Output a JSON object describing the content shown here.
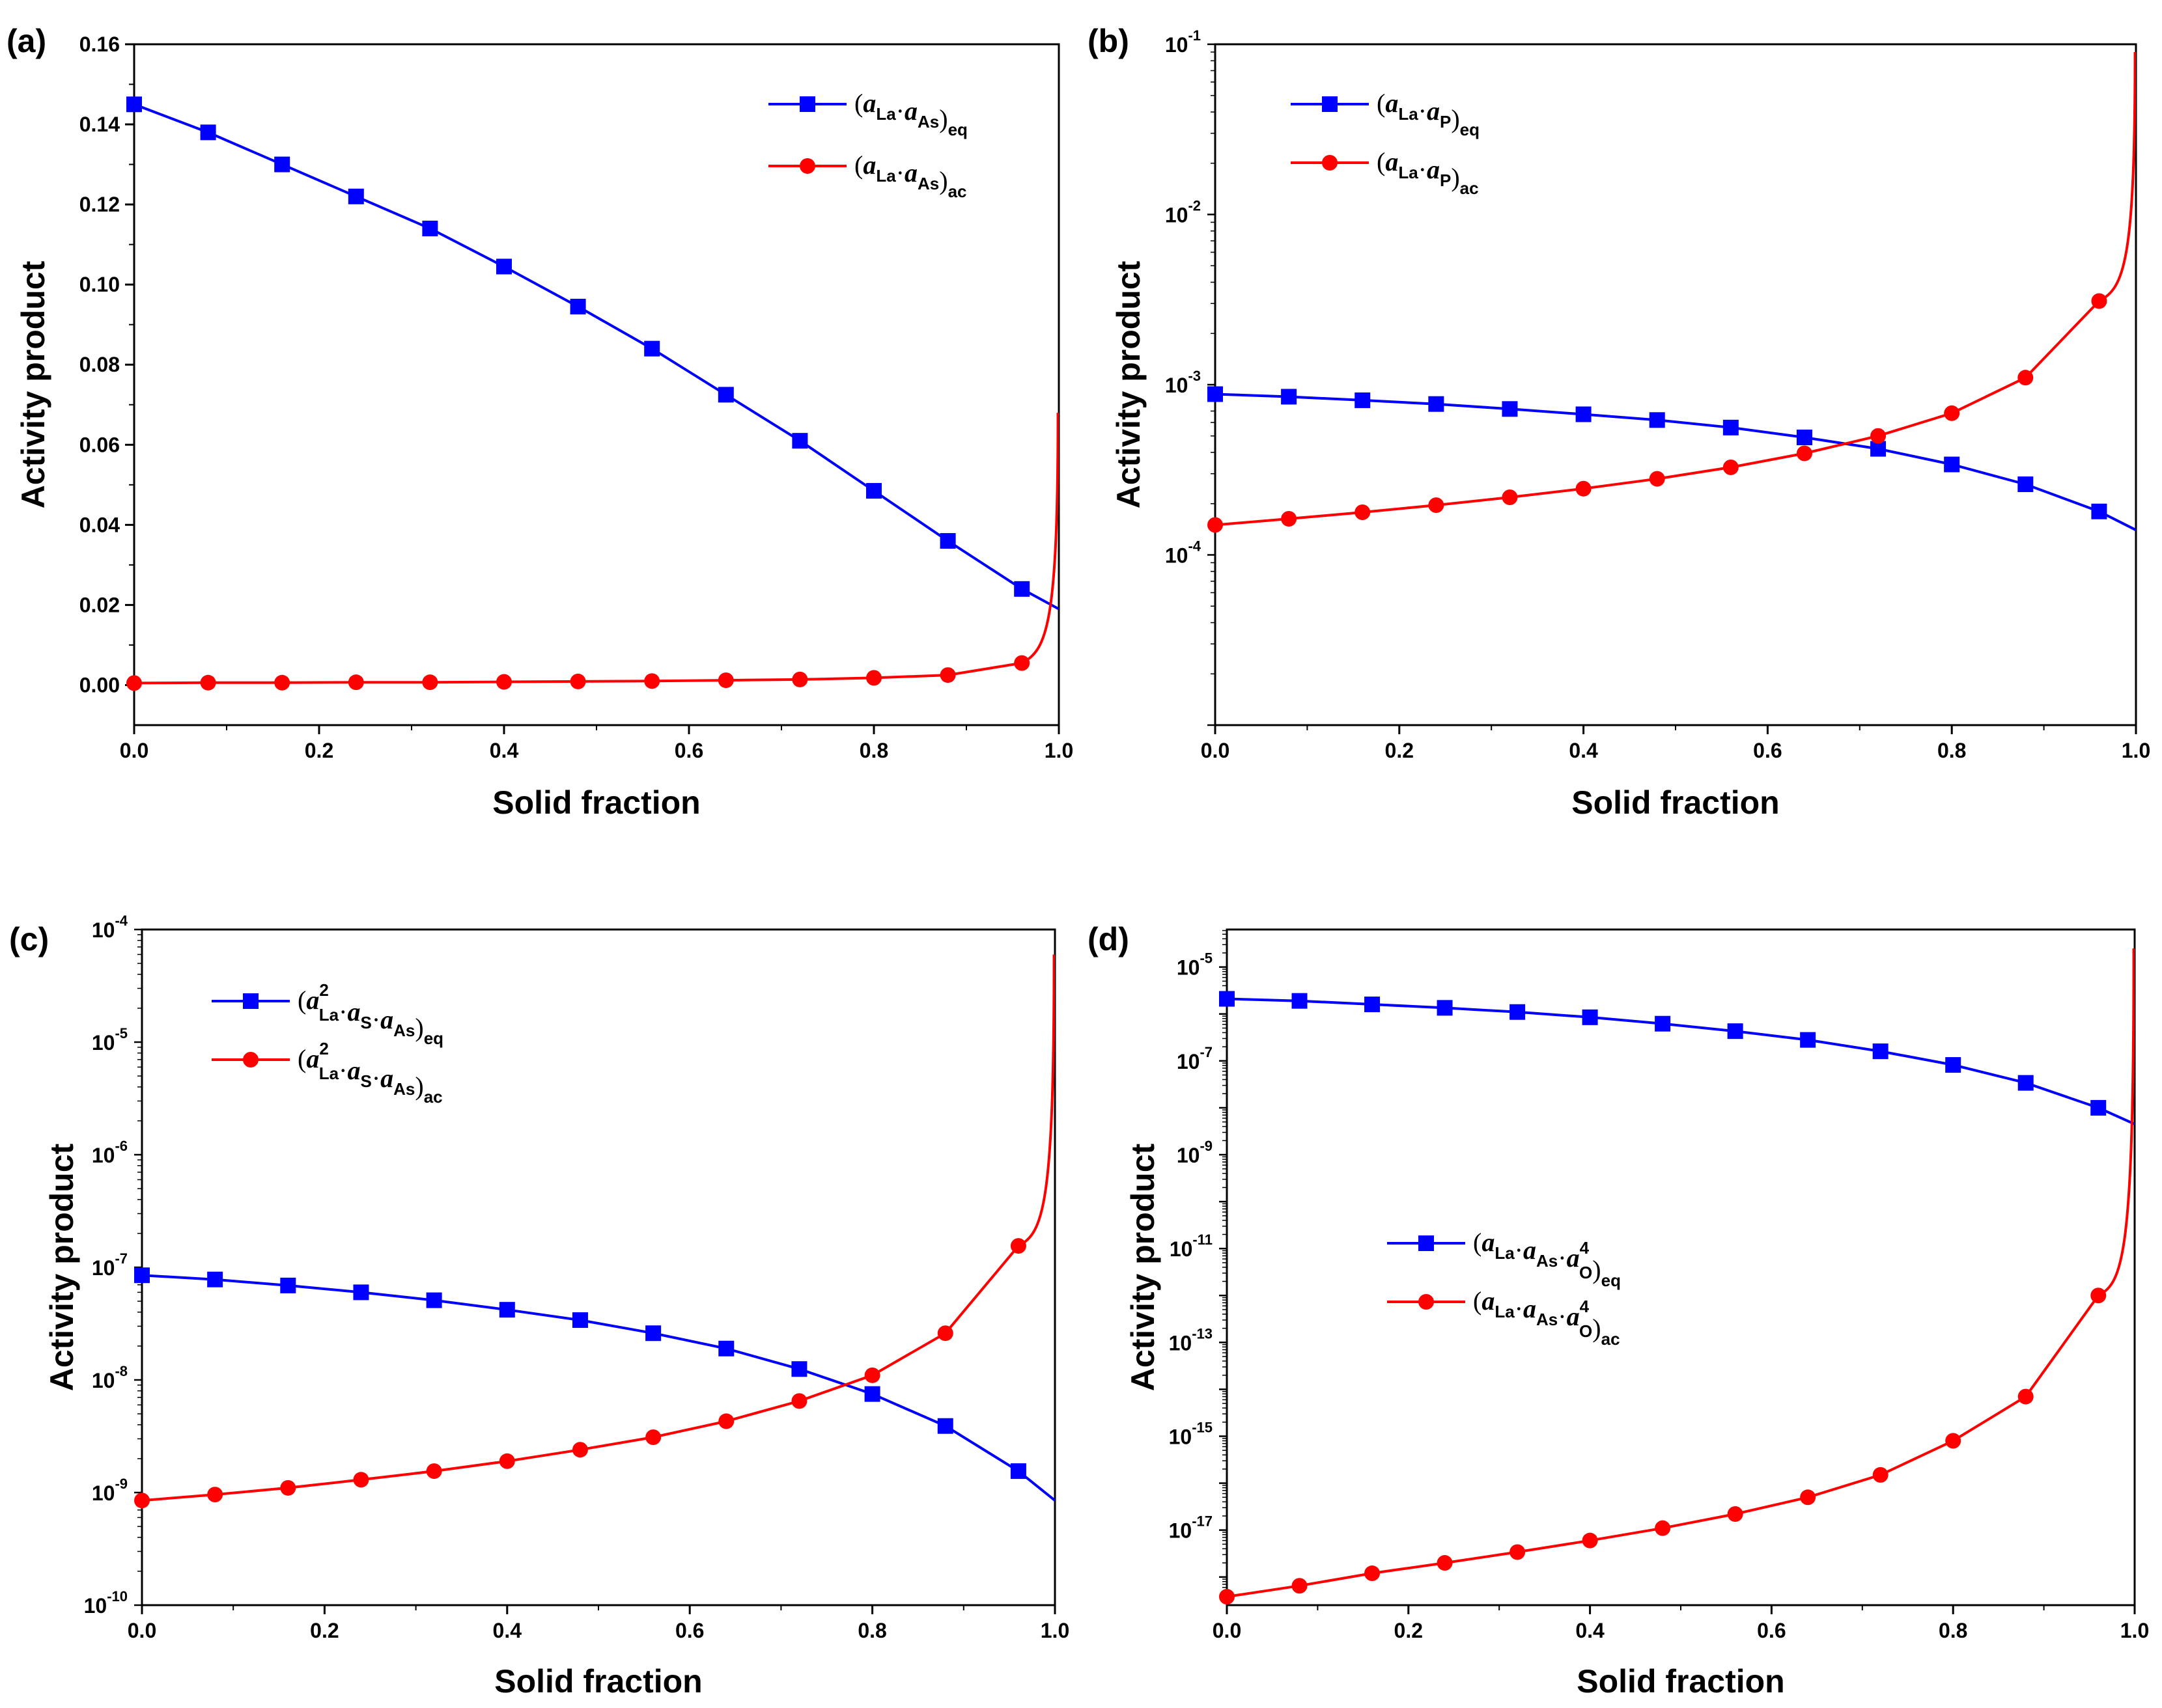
{
  "figure_labels": [
    "(a)",
    "(b)",
    "(c)",
    "(d)"
  ],
  "colors": {
    "eq": "#0000ff",
    "ac": "#ff0000",
    "axis": "#000000"
  },
  "chart_data": [
    {
      "panel": "(a)",
      "type": "line",
      "xlabel": "Solid fraction",
      "ylabel": "Activity product",
      "yscale": "linear",
      "xlim": [
        0,
        1
      ],
      "ylim": [
        -0.01,
        0.16
      ],
      "xticks": [
        "0.0",
        "0.2",
        "0.4",
        "0.6",
        "0.8",
        "1.0"
      ],
      "yticks": [
        "0.00",
        "0.02",
        "0.04",
        "0.06",
        "0.08",
        "0.10",
        "0.12",
        "0.14",
        "0.16"
      ],
      "legend": {
        "position": "top-right",
        "eq": {
          "pre": "(",
          "terms": [
            {
              "b": "a",
              "sub": "La"
            },
            {
              "b": "a",
              "sub": "As"
            }
          ],
          "post": ")",
          "sub": "eq"
        },
        "ac": {
          "pre": "(",
          "terms": [
            {
              "b": "a",
              "sub": "La"
            },
            {
              "b": "a",
              "sub": "As"
            }
          ],
          "post": ")",
          "sub": "ac"
        }
      },
      "series": [
        {
          "name": "eq",
          "marker": "square",
          "x": [
            0,
            0.08,
            0.16,
            0.24,
            0.32,
            0.4,
            0.48,
            0.56,
            0.64,
            0.72,
            0.8,
            0.88,
            0.96
          ],
          "values": [
            0.145,
            0.138,
            0.13,
            0.122,
            0.114,
            0.1045,
            0.0945,
            0.084,
            0.0725,
            0.061,
            0.0485,
            0.036,
            0.024
          ],
          "end": [
            1.0,
            0.019
          ]
        },
        {
          "name": "ac",
          "marker": "circle",
          "x": [
            0,
            0.08,
            0.16,
            0.24,
            0.32,
            0.4,
            0.48,
            0.56,
            0.64,
            0.72,
            0.8,
            0.88,
            0.96
          ],
          "values": [
            0.0005,
            0.0006,
            0.0006,
            0.0007,
            0.0007,
            0.0008,
            0.0009,
            0.001,
            0.0012,
            0.0014,
            0.0018,
            0.0025,
            0.0055
          ],
          "end": [
            0.999,
            0.068
          ]
        }
      ]
    },
    {
      "panel": "(b)",
      "type": "line",
      "xlabel": "Solid fraction",
      "ylabel": "Activity product",
      "yscale": "log",
      "xlim": [
        0,
        1
      ],
      "ylim_exp": [
        -5,
        -1
      ],
      "xticks": [
        "0.0",
        "0.2",
        "0.4",
        "0.6",
        "0.8",
        "1.0"
      ],
      "yticks": [
        {
          "base": "10",
          "exp": "-4",
          "v": -4
        },
        {
          "base": "10",
          "exp": "-3",
          "v": -3
        },
        {
          "base": "10",
          "exp": "-2",
          "v": -2
        },
        {
          "base": "10",
          "exp": "-1",
          "v": -1
        }
      ],
      "legend": {
        "position": "top-left",
        "eq": {
          "pre": "(",
          "terms": [
            {
              "b": "a",
              "sub": "La"
            },
            {
              "b": "a",
              "sub": "P"
            }
          ],
          "post": ")",
          "sub": "eq"
        },
        "ac": {
          "pre": "(",
          "terms": [
            {
              "b": "a",
              "sub": "La"
            },
            {
              "b": "a",
              "sub": "P"
            }
          ],
          "post": ")",
          "sub": "ac"
        }
      },
      "series": [
        {
          "name": "eq",
          "marker": "square",
          "x": [
            0,
            0.08,
            0.16,
            0.24,
            0.32,
            0.4,
            0.48,
            0.56,
            0.64,
            0.72,
            0.8,
            0.88,
            0.96
          ],
          "values": [
            0.00088,
            0.00085,
            0.00081,
            0.00077,
            0.00072,
            0.00067,
            0.00062,
            0.00056,
            0.00049,
            0.00042,
            0.00034,
            0.00026,
            0.00018
          ],
          "end": [
            1.0,
            0.00014
          ]
        },
        {
          "name": "ac",
          "marker": "circle",
          "x": [
            0,
            0.08,
            0.16,
            0.24,
            0.32,
            0.4,
            0.48,
            0.56,
            0.64,
            0.72,
            0.8,
            0.88,
            0.96
          ],
          "values": [
            0.00015,
            0.000163,
            0.000178,
            0.000196,
            0.000218,
            0.000245,
            0.00028,
            0.000327,
            0.000395,
            0.0005,
            0.00068,
            0.0011,
            0.0031
          ],
          "end": [
            0.999,
            0.09
          ]
        }
      ]
    },
    {
      "panel": "(c)",
      "type": "line",
      "xlabel": "Solid fraction",
      "ylabel": "Activity product",
      "yscale": "log",
      "xlim": [
        0,
        1
      ],
      "ylim_exp": [
        -10,
        -4
      ],
      "xticks": [
        "0.0",
        "0.2",
        "0.4",
        "0.6",
        "0.8",
        "1.0"
      ],
      "yticks": [
        {
          "base": "10",
          "exp": "-10",
          "v": -10
        },
        {
          "base": "10",
          "exp": "-9",
          "v": -9
        },
        {
          "base": "10",
          "exp": "-8",
          "v": -8
        },
        {
          "base": "10",
          "exp": "-7",
          "v": -7
        },
        {
          "base": "10",
          "exp": "-6",
          "v": -6
        },
        {
          "base": "10",
          "exp": "-5",
          "v": -5
        },
        {
          "base": "10",
          "exp": "-4",
          "v": -4
        }
      ],
      "legend": {
        "position": "top-left",
        "eq": {
          "pre": "(",
          "terms": [
            {
              "b": "a",
              "sub": "La",
              "sup": "2"
            },
            {
              "b": "a",
              "sub": "S"
            },
            {
              "b": "a",
              "sub": "As"
            }
          ],
          "post": ")",
          "sub": "eq"
        },
        "ac": {
          "pre": "(",
          "terms": [
            {
              "b": "a",
              "sub": "La",
              "sup": "2"
            },
            {
              "b": "a",
              "sub": "S"
            },
            {
              "b": "a",
              "sub": "As"
            }
          ],
          "post": ")",
          "sub": "ac"
        }
      },
      "series": [
        {
          "name": "eq",
          "marker": "square",
          "x": [
            0,
            0.08,
            0.16,
            0.24,
            0.32,
            0.4,
            0.48,
            0.56,
            0.64,
            0.72,
            0.8,
            0.88,
            0.96
          ],
          "values": [
            8.5e-08,
            7.8e-08,
            6.9e-08,
            6e-08,
            5.1e-08,
            4.2e-08,
            3.4e-08,
            2.6e-08,
            1.9e-08,
            1.25e-08,
            7.5e-09,
            3.9e-09,
            1.55e-09
          ],
          "end": [
            1.0,
            8.5e-10
          ]
        },
        {
          "name": "ac",
          "marker": "circle",
          "x": [
            0,
            0.08,
            0.16,
            0.24,
            0.32,
            0.4,
            0.48,
            0.56,
            0.64,
            0.72,
            0.8,
            0.88,
            0.96
          ],
          "values": [
            8.5e-10,
            9.6e-10,
            1.1e-09,
            1.3e-09,
            1.55e-09,
            1.9e-09,
            2.4e-09,
            3.1e-09,
            4.3e-09,
            6.5e-09,
            1.1e-08,
            2.6e-08,
            1.55e-07
          ],
          "end": [
            0.999,
            6e-05
          ]
        }
      ]
    },
    {
      "panel": "(d)",
      "type": "line",
      "xlabel": "Solid fraction",
      "ylabel": "Activity product",
      "yscale": "log",
      "xlim": [
        0,
        1
      ],
      "ylim_exp": [
        -18.6,
        -4.2
      ],
      "xticks": [
        "0.0",
        "0.2",
        "0.4",
        "0.6",
        "0.8",
        "1.0"
      ],
      "yticks": [
        {
          "base": "10",
          "exp": "-17",
          "v": -17
        },
        {
          "base": "10",
          "exp": "-15",
          "v": -15
        },
        {
          "base": "10",
          "exp": "-13",
          "v": -13
        },
        {
          "base": "10",
          "exp": "-11",
          "v": -11
        },
        {
          "base": "10",
          "exp": "-9",
          "v": -9
        },
        {
          "base": "10",
          "exp": "-7",
          "v": -7
        },
        {
          "base": "10",
          "exp": "-5",
          "v": -5
        }
      ],
      "legend": {
        "position": "center-left",
        "eq": {
          "pre": "(",
          "terms": [
            {
              "b": "a",
              "sub": "La"
            },
            {
              "b": "a",
              "sub": "As"
            },
            {
              "b": "a",
              "sub": "O",
              "sup": "4"
            }
          ],
          "post": ")",
          "sub": "eq"
        },
        "ac": {
          "pre": "(",
          "terms": [
            {
              "b": "a",
              "sub": "La"
            },
            {
              "b": "a",
              "sub": "As"
            },
            {
              "b": "a",
              "sub": "O",
              "sup": "4"
            }
          ],
          "post": ")",
          "sub": "ac"
        }
      },
      "series": [
        {
          "name": "eq",
          "marker": "square",
          "x": [
            0,
            0.08,
            0.16,
            0.24,
            0.32,
            0.4,
            0.48,
            0.56,
            0.64,
            0.72,
            0.8,
            0.88,
            0.96
          ],
          "values": [
            2.1e-06,
            1.9e-06,
            1.6e-06,
            1.35e-06,
            1.1e-06,
            8.5e-07,
            6.2e-07,
            4.3e-07,
            2.8e-07,
            1.6e-07,
            8.2e-08,
            3.4e-08,
            1e-08
          ],
          "end": [
            1.0,
            4.5e-09
          ]
        },
        {
          "name": "ac",
          "marker": "circle",
          "x": [
            0,
            0.08,
            0.16,
            0.24,
            0.32,
            0.4,
            0.48,
            0.56,
            0.64,
            0.72,
            0.8,
            0.88,
            0.96
          ],
          "values": [
            3.8e-19,
            6.5e-19,
            1.2e-18,
            2e-18,
            3.4e-18,
            6e-18,
            1.1e-17,
            2.2e-17,
            5e-17,
            1.5e-16,
            8e-16,
            7e-15,
            1e-12
          ],
          "end": [
            0.999,
            2.5e-05
          ]
        }
      ]
    }
  ]
}
